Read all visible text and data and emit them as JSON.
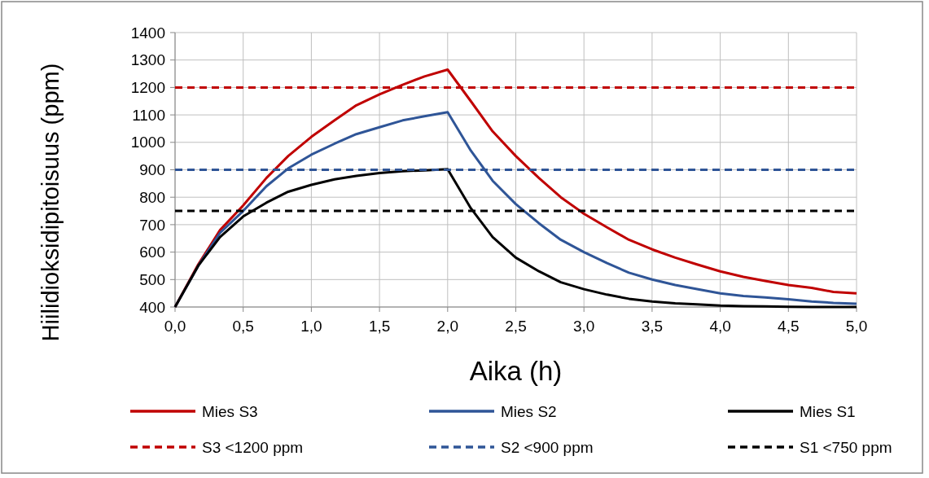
{
  "chart_data": {
    "type": "line",
    "xlabel": "Aika (h)",
    "ylabel": "Hiilidioksidipitoisuus (ppm)",
    "xlim": [
      0,
      5
    ],
    "xticks": [
      {
        "value": 0,
        "label": "0,0"
      },
      {
        "value": 0.5,
        "label": "0,5"
      },
      {
        "value": 1,
        "label": "1,0"
      },
      {
        "value": 1.5,
        "label": "1,5"
      },
      {
        "value": 2,
        "label": "2,0"
      },
      {
        "value": 2.5,
        "label": "2,5"
      },
      {
        "value": 3,
        "label": "3,0"
      },
      {
        "value": 3.5,
        "label": "3,5"
      },
      {
        "value": 4,
        "label": "4,0"
      },
      {
        "value": 4.5,
        "label": "4,5"
      },
      {
        "value": 5,
        "label": "5,0"
      }
    ],
    "ylim": [
      400,
      1400
    ],
    "yticks": [
      400,
      500,
      600,
      700,
      800,
      900,
      1000,
      1100,
      1200,
      1300,
      1400
    ],
    "x": [
      0,
      0.17,
      0.33,
      0.5,
      0.67,
      0.83,
      1,
      1.17,
      1.33,
      1.5,
      1.67,
      1.83,
      2,
      2.17,
      2.33,
      2.5,
      2.67,
      2.83,
      3,
      3.17,
      3.33,
      3.5,
      3.67,
      3.83,
      4,
      4.17,
      4.33,
      4.5,
      4.67,
      4.83,
      5
    ],
    "grid": true,
    "legend": "bottom",
    "marker": "none",
    "series": [
      {
        "name": "Mies S3",
        "color": "#c00000",
        "values": [
          400,
          555,
          680,
          770,
          870,
          950,
          1020,
          1080,
          1135,
          1175,
          1210,
          1240,
          1265,
          1150,
          1040,
          950,
          870,
          800,
          740,
          690,
          645,
          610,
          580,
          555,
          530,
          510,
          495,
          480,
          470,
          455,
          450
        ]
      },
      {
        "name": "Mies S2",
        "color": "#2f5597",
        "values": [
          400,
          550,
          670,
          750,
          840,
          905,
          955,
          995,
          1030,
          1055,
          1080,
          1095,
          1110,
          970,
          860,
          775,
          705,
          645,
          600,
          560,
          525,
          500,
          480,
          465,
          450,
          440,
          435,
          428,
          420,
          415,
          412
        ]
      },
      {
        "name": "Mies S1",
        "color": "#000000",
        "values": [
          400,
          550,
          655,
          730,
          780,
          820,
          845,
          865,
          878,
          888,
          895,
          898,
          902,
          760,
          655,
          580,
          530,
          490,
          465,
          445,
          430,
          420,
          413,
          410,
          405,
          403,
          402,
          401,
          400,
          400,
          400
        ]
      },
      {
        "name": "S3 <1200 ppm",
        "color": "#c00000",
        "line_style": "dashed",
        "values": [
          1200,
          1200,
          1200,
          1200,
          1200,
          1200,
          1200,
          1200,
          1200,
          1200,
          1200,
          1200,
          1200,
          1200,
          1200,
          1200,
          1200,
          1200,
          1200,
          1200,
          1200,
          1200,
          1200,
          1200,
          1200,
          1200,
          1200,
          1200,
          1200,
          1200,
          1200
        ]
      },
      {
        "name": "S2 <900 ppm",
        "color": "#2f5597",
        "line_style": "dashed",
        "values": [
          900,
          900,
          900,
          900,
          900,
          900,
          900,
          900,
          900,
          900,
          900,
          900,
          900,
          900,
          900,
          900,
          900,
          900,
          900,
          900,
          900,
          900,
          900,
          900,
          900,
          900,
          900,
          900,
          900,
          900,
          900
        ]
      },
      {
        "name": "S1 <750 ppm",
        "color": "#000000",
        "line_style": "dashed",
        "values": [
          750,
          750,
          750,
          750,
          750,
          750,
          750,
          750,
          750,
          750,
          750,
          750,
          750,
          750,
          750,
          750,
          750,
          750,
          750,
          750,
          750,
          750,
          750,
          750,
          750,
          750,
          750,
          750,
          750,
          750,
          750
        ]
      }
    ]
  }
}
